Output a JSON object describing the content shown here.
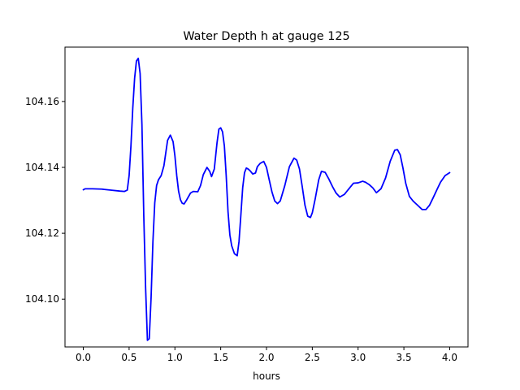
{
  "chart_data": {
    "type": "line",
    "title": "Water Depth h at gauge 125",
    "xlabel": "hours",
    "ylabel": "",
    "xlim": [
      -0.2,
      4.2
    ],
    "ylim": [
      104.0855,
      104.1765
    ],
    "xticks": [
      0.0,
      0.5,
      1.0,
      1.5,
      2.0,
      2.5,
      3.0,
      3.5,
      4.0
    ],
    "xtick_labels": [
      "0.0",
      "0.5",
      "1.0",
      "1.5",
      "2.0",
      "2.5",
      "3.0",
      "3.5",
      "4.0"
    ],
    "yticks": [
      104.1,
      104.12,
      104.14,
      104.16
    ],
    "ytick_labels": [
      "104.10",
      "104.12",
      "104.14",
      "104.16"
    ],
    "grid": false,
    "series": [
      {
        "color": "#0000ff",
        "x": [
          0.0,
          0.02,
          0.1,
          0.2,
          0.3,
          0.4,
          0.45,
          0.48,
          0.5,
          0.52,
          0.54,
          0.56,
          0.58,
          0.6,
          0.62,
          0.64,
          0.66,
          0.68,
          0.7,
          0.72,
          0.74,
          0.76,
          0.78,
          0.8,
          0.82,
          0.85,
          0.88,
          0.92,
          0.95,
          0.98,
          1.0,
          1.02,
          1.04,
          1.06,
          1.08,
          1.1,
          1.13,
          1.17,
          1.2,
          1.25,
          1.28,
          1.31,
          1.35,
          1.38,
          1.4,
          1.43,
          1.46,
          1.48,
          1.5,
          1.52,
          1.54,
          1.56,
          1.58,
          1.6,
          1.62,
          1.65,
          1.68,
          1.7,
          1.72,
          1.74,
          1.76,
          1.78,
          1.8,
          1.82,
          1.85,
          1.88,
          1.9,
          1.93,
          1.97,
          2.0,
          2.03,
          2.06,
          2.09,
          2.12,
          2.15,
          2.2,
          2.25,
          2.3,
          2.33,
          2.36,
          2.39,
          2.42,
          2.45,
          2.48,
          2.5,
          2.53,
          2.57,
          2.6,
          2.64,
          2.68,
          2.72,
          2.76,
          2.8,
          2.85,
          2.9,
          2.95,
          3.0,
          3.05,
          3.08,
          3.12,
          3.16,
          3.2,
          3.25,
          3.3,
          3.35,
          3.4,
          3.43,
          3.46,
          3.49,
          3.52,
          3.56,
          3.6,
          3.65,
          3.7,
          3.74,
          3.78,
          3.82,
          3.86,
          3.9,
          3.95,
          4.0
        ],
        "y": [
          104.1332,
          104.1335,
          104.1335,
          104.1334,
          104.1331,
          104.1328,
          104.1327,
          104.1331,
          104.1375,
          104.1465,
          104.158,
          104.167,
          104.1723,
          104.1731,
          104.1685,
          104.153,
          104.1255,
          104.1035,
          104.0875,
          104.088,
          104.1005,
          104.1175,
          104.1292,
          104.1345,
          104.1362,
          104.1375,
          104.1405,
          104.1482,
          104.1498,
          104.1478,
          104.1435,
          104.1375,
          104.1328,
          104.1302,
          104.1291,
          104.1289,
          104.1302,
          104.1322,
          104.1327,
          104.1326,
          104.1345,
          104.1378,
          104.14,
          104.1388,
          104.1372,
          104.1395,
          104.1475,
          104.1516,
          104.152,
          104.1508,
          104.1465,
          104.1375,
          104.1265,
          104.1195,
          104.1162,
          104.1138,
          104.1132,
          104.1175,
          104.1255,
          104.1338,
          104.1384,
          104.1398,
          104.1395,
          104.139,
          104.138,
          104.1383,
          104.1402,
          104.1412,
          104.1418,
          104.14,
          104.1362,
          104.1325,
          104.1298,
          104.129,
          104.1298,
          104.1345,
          104.1402,
          104.1428,
          104.1422,
          104.1395,
          104.1342,
          104.1285,
          104.1252,
          104.1248,
          104.1262,
          104.1302,
          104.1362,
          104.1388,
          104.1385,
          104.1365,
          104.1342,
          104.1322,
          104.131,
          104.1318,
          104.1335,
          104.1352,
          104.1353,
          104.1358,
          104.1355,
          104.1348,
          104.1338,
          104.1323,
          104.1335,
          104.1368,
          104.1418,
          104.1452,
          104.1454,
          104.1438,
          104.1398,
          104.1352,
          104.1312,
          104.1298,
          104.1285,
          104.1272,
          104.1272,
          104.1285,
          104.1308,
          104.1332,
          104.1355,
          104.1375,
          104.1384
        ]
      }
    ]
  }
}
